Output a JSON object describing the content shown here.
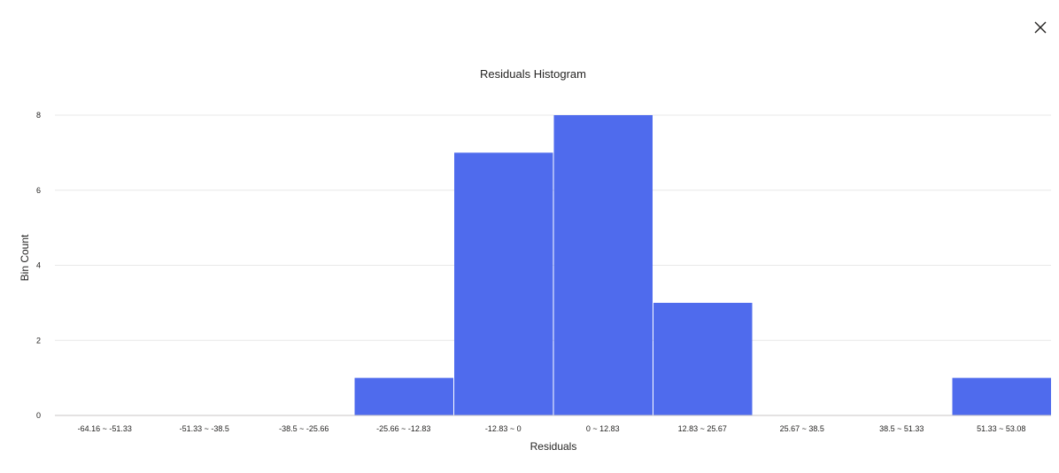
{
  "window": {
    "close_icon": "close-icon"
  },
  "chart_data": {
    "type": "bar",
    "title": "Residuals Histogram",
    "xlabel": "Residuals",
    "ylabel": "Bin Count",
    "categories": [
      "-64.16 ~ -51.33",
      "-51.33 ~ -38.5",
      "-38.5 ~ -25.66",
      "-25.66 ~ -12.83",
      "-12.83 ~ 0",
      "0 ~ 12.83",
      "12.83 ~ 25.67",
      "25.67 ~ 38.5",
      "38.5 ~ 51.33",
      "51.33 ~ 53.08"
    ],
    "values": [
      0,
      0,
      0,
      1,
      7,
      8,
      3,
      0,
      0,
      1
    ],
    "ylim": [
      0,
      8
    ],
    "yticks": [
      0,
      2,
      4,
      6,
      8
    ],
    "grid": true,
    "bar_color": "#4f6bed"
  }
}
